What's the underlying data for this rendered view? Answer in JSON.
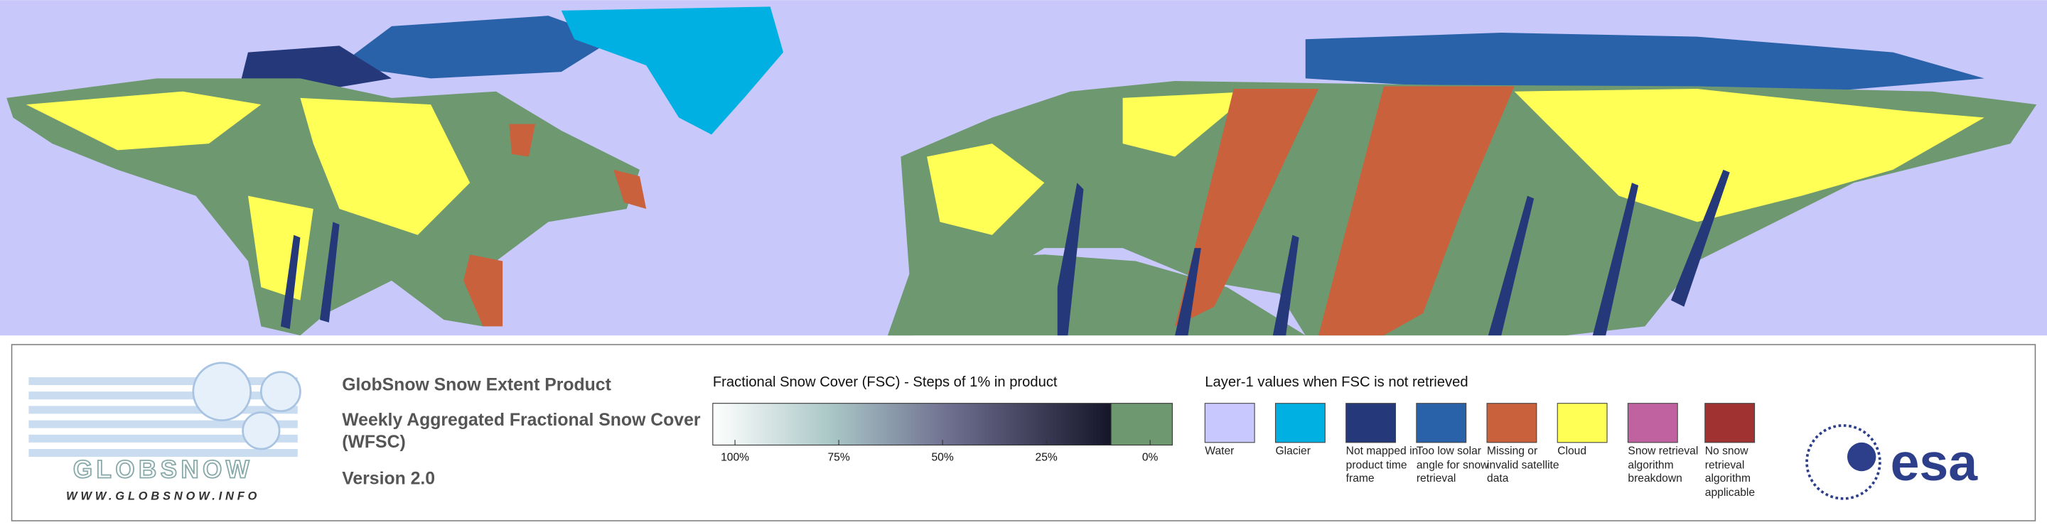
{
  "logo": {
    "name": "GLOBSNOW",
    "url": "WWW.GLOBSNOW.INFO"
  },
  "header": {
    "title": "GlobSnow Snow Extent Product",
    "subtitle": "Weekly Aggregated Fractional Snow Cover (WFSC)",
    "version": "Version 2.0"
  },
  "colorbar": {
    "title": "Fractional Snow Cover (FSC) - Steps of 1% in product",
    "range": [
      100,
      0
    ],
    "ticks": [
      {
        "value": 100,
        "label": "100%"
      },
      {
        "value": 75,
        "label": "75%"
      },
      {
        "value": 50,
        "label": "50%"
      },
      {
        "value": 25,
        "label": "25%"
      },
      {
        "value": 0,
        "label": "0%"
      }
    ],
    "zero_color": "#6e9870"
  },
  "legend": {
    "title": "Layer-1 values when FSC is not retrieved",
    "items": [
      {
        "label": "Water",
        "color": "#c8c8ff"
      },
      {
        "label": "Glacier",
        "color": "#00b0e2"
      },
      {
        "label": "Not mapped in product time frame",
        "color": "#25387a"
      },
      {
        "label": "Too low solar angle for snow retrieval",
        "color": "#2a62aa"
      },
      {
        "label": "Missing or invalid satellite data",
        "color": "#c9623c"
      },
      {
        "label": "Cloud",
        "color": "#ffff55"
      },
      {
        "label": "Snow retrieval algorithm breakdown",
        "color": "#c062a0"
      },
      {
        "label": "No snow retrieval algorithm applicable",
        "color": "#a03232"
      }
    ]
  },
  "agency": {
    "name": "esa"
  }
}
